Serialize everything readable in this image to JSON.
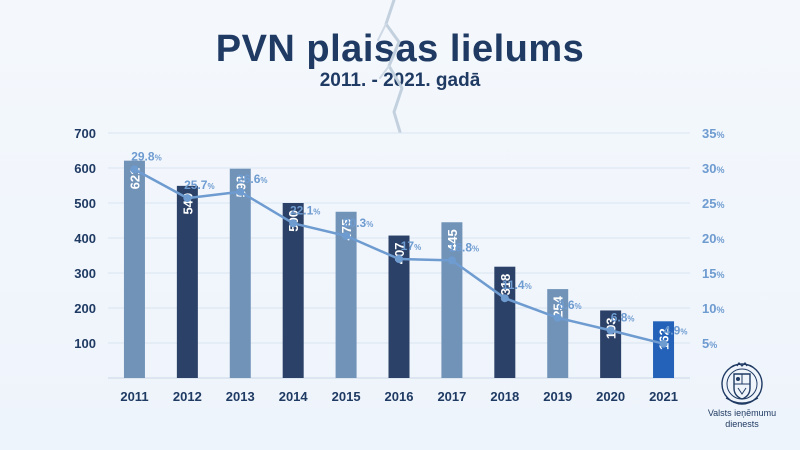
{
  "header": {
    "title": "PVN plaisas lielums",
    "subtitle": "2011. - 2021. gadā"
  },
  "footer": {
    "org_name": "Valsts ieņēmumu dienests"
  },
  "chart_data": {
    "type": "bar",
    "title": "PVN plaisas lielums",
    "subtitle": "2011. - 2021. gadā",
    "categories": [
      "2011",
      "2012",
      "2013",
      "2014",
      "2015",
      "2016",
      "2017",
      "2018",
      "2019",
      "2020",
      "2021"
    ],
    "series": [
      {
        "name": "PVN plaisa",
        "type": "bar",
        "axis": "left",
        "values": [
          621,
          549,
          598,
          500,
          475,
          407,
          445,
          318,
          254,
          193,
          162
        ],
        "labels": [
          "621",
          "549",
          "598",
          "500",
          "475",
          "407",
          "445",
          "318",
          "254",
          "193",
          "162"
        ]
      },
      {
        "name": "PVN plaisa %",
        "type": "line",
        "axis": "right",
        "values": [
          29.8,
          25.7,
          26.6,
          22.1,
          20.3,
          17,
          16.8,
          11.4,
          8.6,
          6.8,
          4.9
        ],
        "labels": [
          "29.8%",
          "25.7%",
          "26.6%",
          "22.1%",
          "20.3%",
          "17%",
          "16.8%",
          "11.4%",
          "8.6%",
          "6.8%",
          "4.9%"
        ]
      }
    ],
    "y_left": {
      "min": 0,
      "max": 700,
      "ticks": [
        "100",
        "200",
        "300",
        "400",
        "500",
        "600",
        "700"
      ],
      "tick_values": [
        100,
        200,
        300,
        400,
        500,
        600,
        700
      ]
    },
    "y_right": {
      "min": 0,
      "max": 35,
      "ticks": [
        "5%",
        "10%",
        "15%",
        "20%",
        "25%",
        "30%",
        "35%"
      ],
      "tick_values": [
        5,
        10,
        15,
        20,
        25,
        30,
        35
      ]
    },
    "colors": {
      "bar_light": "#7193b8",
      "bar_dark": "#2b4167",
      "bar_highlight": "#2461b8",
      "line": "#6e9bd0",
      "text_dark": "#1f3a63",
      "grid": "#d9e4f1"
    },
    "grid": true,
    "legend": "none"
  }
}
